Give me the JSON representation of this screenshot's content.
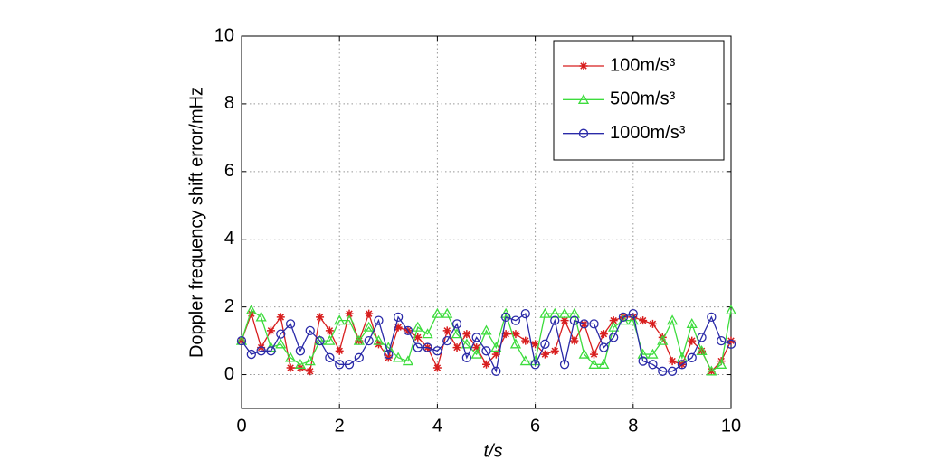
{
  "chart_data": {
    "type": "line",
    "x_label": "t/s",
    "y_label": "Doppler frequency shift error/mHz",
    "x": [
      0,
      0.2,
      0.4,
      0.6,
      0.8,
      1,
      1.2,
      1.4,
      1.6,
      1.8,
      2,
      2.2,
      2.4,
      2.6,
      2.8,
      3,
      3.2,
      3.4,
      3.6,
      3.8,
      4,
      4.2,
      4.4,
      4.6,
      4.8,
      5,
      5.2,
      5.4,
      5.6,
      5.8,
      6,
      6.2,
      6.4,
      6.6,
      6.8,
      7,
      7.2,
      7.4,
      7.6,
      7.8,
      8,
      8.2,
      8.4,
      8.6,
      8.8,
      9,
      9.2,
      9.4,
      9.6,
      9.8,
      10
    ],
    "series": [
      {
        "name": "100m/s³",
        "color": "#d81e1e",
        "marker": "star",
        "values": [
          1.0,
          1.8,
          0.8,
          1.3,
          1.7,
          0.2,
          0.2,
          0.1,
          1.7,
          1.3,
          0.7,
          1.8,
          1.0,
          1.8,
          0.9,
          0.5,
          1.4,
          1.3,
          1.1,
          0.8,
          0.2,
          1.3,
          0.8,
          1.2,
          0.8,
          0.3,
          0.6,
          1.2,
          1.2,
          1.0,
          0.9,
          0.6,
          0.7,
          1.6,
          1.0,
          1.5,
          0.6,
          1.2,
          1.6,
          1.7,
          1.7,
          1.6,
          1.5,
          1.1,
          0.4,
          0.3,
          1.0,
          0.7,
          0.1,
          0.4,
          1.0
        ]
      },
      {
        "name": "500m/s³",
        "color": "#3ddc3d",
        "marker": "triangle",
        "values": [
          1.0,
          1.9,
          1.7,
          0.8,
          0.9,
          0.5,
          0.3,
          0.4,
          1.0,
          1.0,
          1.6,
          1.6,
          1.0,
          1.4,
          1.0,
          0.8,
          0.5,
          0.4,
          1.4,
          1.2,
          1.8,
          1.8,
          1.2,
          0.9,
          0.6,
          1.3,
          0.8,
          1.8,
          0.9,
          0.4,
          0.4,
          1.8,
          1.8,
          1.8,
          1.8,
          0.6,
          0.3,
          0.3,
          1.4,
          1.6,
          1.6,
          0.6,
          0.6,
          1.0,
          1.6,
          0.5,
          1.5,
          0.7,
          0.1,
          0.3,
          1.9
        ]
      },
      {
        "name": "1000m/s³",
        "color": "#2a2aa8",
        "marker": "circle",
        "values": [
          1.0,
          0.6,
          0.7,
          0.7,
          1.2,
          1.5,
          0.7,
          1.3,
          1.0,
          0.5,
          0.3,
          0.3,
          0.5,
          1.0,
          1.6,
          0.6,
          1.7,
          1.3,
          0.8,
          0.8,
          0.7,
          1.0,
          1.5,
          0.5,
          1.1,
          0.7,
          0.1,
          1.7,
          1.6,
          1.8,
          0.3,
          0.9,
          1.6,
          0.3,
          1.6,
          1.5,
          1.5,
          0.8,
          1.1,
          1.7,
          1.8,
          0.4,
          0.3,
          0.1,
          0.1,
          0.3,
          0.5,
          1.1,
          1.7,
          1.0,
          0.9
        ]
      }
    ],
    "xlim": [
      0,
      10
    ],
    "xticks": [
      0,
      2,
      4,
      6,
      8,
      10
    ],
    "ylim": [
      -1,
      10
    ],
    "yticks": [
      0,
      2,
      4,
      6,
      8,
      10
    ],
    "grid": true,
    "legend": "upper right"
  }
}
